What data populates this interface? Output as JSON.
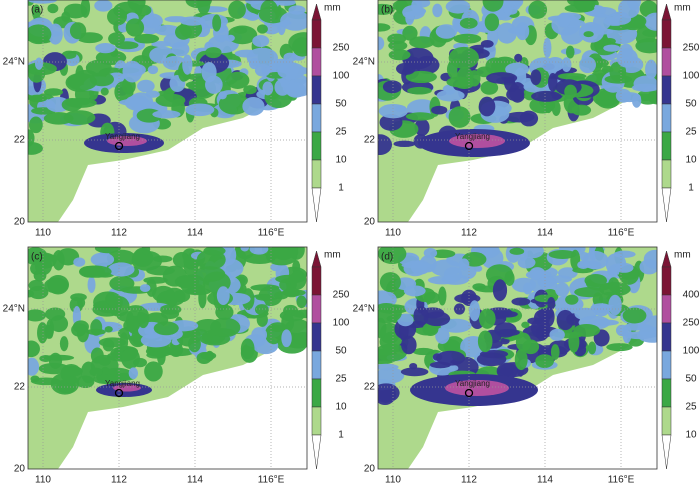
{
  "x_ticks": [
    "110",
    "112",
    "114",
    "116°E"
  ],
  "y_ticks": [
    "24°N",
    "22",
    "20"
  ],
  "unit": "mm",
  "station": "Yangjiang",
  "panels": [
    {
      "label": "(a)",
      "levels": [
        "250",
        "100",
        "50",
        "25",
        "10",
        "1"
      ]
    },
    {
      "label": "(b)",
      "levels": [
        "250",
        "100",
        "50",
        "25",
        "10",
        "1"
      ]
    },
    {
      "label": "(c)",
      "levels": [
        "250",
        "100",
        "50",
        "25",
        "10",
        "1"
      ]
    },
    {
      "label": "(d)",
      "levels": [
        "400",
        "250",
        "100",
        "50",
        "25",
        "10"
      ]
    }
  ]
}
